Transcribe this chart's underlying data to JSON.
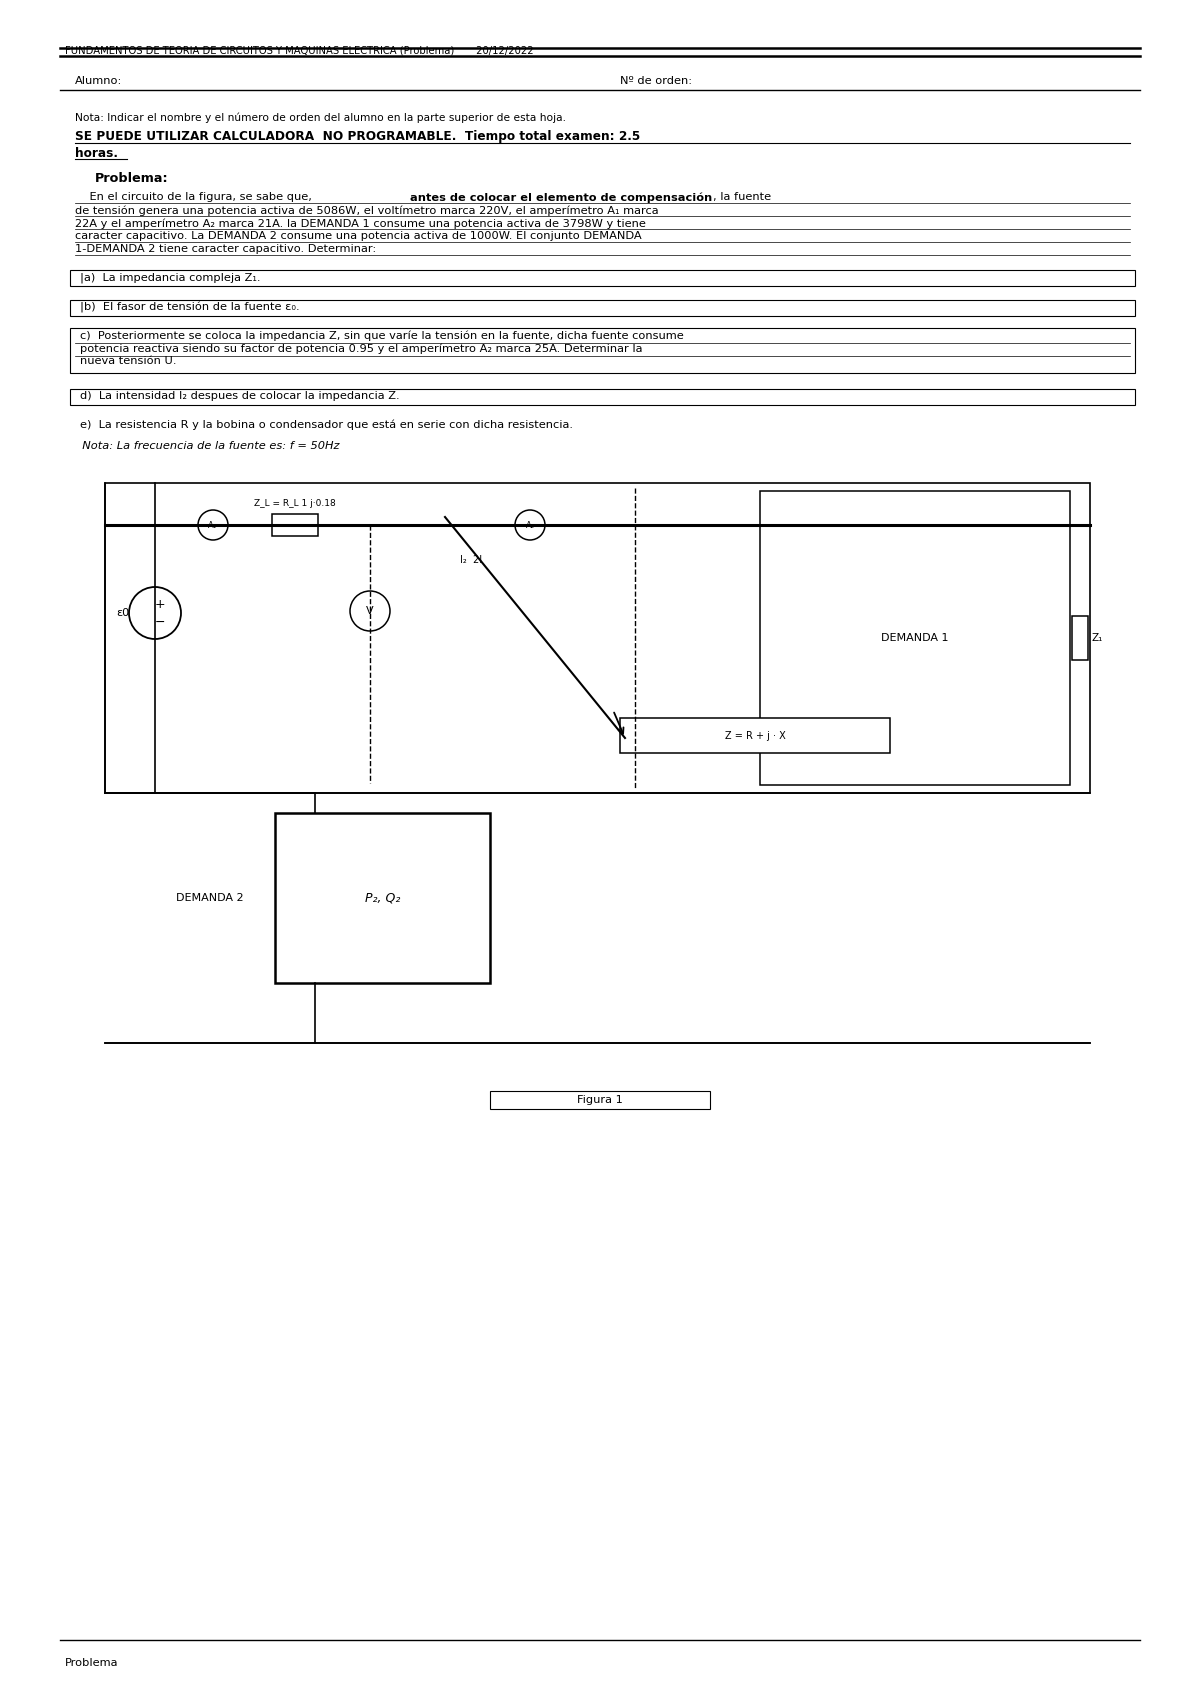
{
  "title_header": "FUNDAMENTOS DE TEORIA DE CIRCUITOS Y MAQUINAS ELECTRICA (Problema)       20/12/2022",
  "alumno_label": "Alumno:",
  "orden_label": "Nº de orden:",
  "nota_text": "Nota: Indicar el nombre y el número de orden del alumno en la parte superior de esta hoja.",
  "bold_line1": "SE PUEDE UTILIZAR CALCULADORA  NO PROGRAMABLE.  Tiempo total examen: 2.5",
  "bold_line2": "horas.",
  "problema_title": "Problema:",
  "body_line1_pre": "    En el circuito de la figura, se sabe que, ",
  "body_line1_bold": "antes de colocar el elemento de compensación",
  "body_line1_post": ", la fuente",
  "body_line2": "de tensión genera una potencia activa de 5086W, el voltímetro marca 220V, el amperímetro A₁ marca",
  "body_line3": "22A y el amperímetro A₂ marca 21A. la DEMANDA 1 consume una potencia activa de 3798W y tiene",
  "body_line4": "caracter capacitivo. La DEMANDA 2 consume una potencia activa de 1000W. El conjunto DEMANDA",
  "body_line5": "1-DEMANDA 2 tiene caracter capacitivo. Determinar:",
  "item_a": "|a)  La impedancia compleja Z₁.",
  "item_b": "|b)  El fasor de tensión de la fuente ε₀.",
  "item_c1": "c)  Posteriormente se coloca la impedancia Z, sin que varíe la tensión en la fuente, dicha fuente consume",
  "item_c2": "potencia reactiva siendo su factor de potencia 0.95 y el amperímetro A₂ marca 25A. Determinar la",
  "item_c3": "nueva tensión U.",
  "item_d": "d)  La intensidad I₂ despues de colocar la impedancia Z.",
  "item_e": "e)  La resistencia R y la bobina o condensador que está en serie con dicha resistencia.",
  "nota2": "  Nota: La frecuencia de la fuente es: f = 50Hz",
  "figura_label": "Figura 1",
  "problema_footer": "Problema",
  "zl_label": "Z_L = R_L 1 j·0.18",
  "z_label": "Z = R + j · X",
  "demanda1_label": "DEMANDA 1",
  "demanda2_label": "DEMANDA 2",
  "dem2_inner": "P₂, Q₂",
  "bg_color": "#ffffff",
  "text_color": "#000000",
  "font_size_header": 7.2,
  "font_size_body": 8.2,
  "font_size_title": 9.0
}
